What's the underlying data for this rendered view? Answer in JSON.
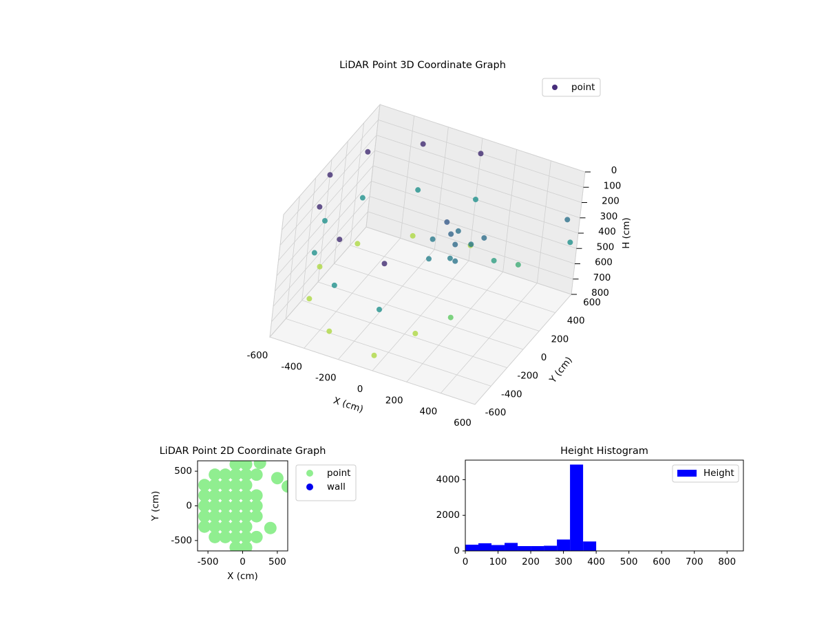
{
  "chart_data": [
    {
      "type": "scatter3d",
      "title": "LiDAR Point 3D Coordinate Graph",
      "xlabel": "X (cm)",
      "ylabel": "Y (cm)",
      "zlabel": "H (cm)",
      "xlim": [
        -600,
        600
      ],
      "ylim": [
        -600,
        600
      ],
      "hlim": [
        0,
        800
      ],
      "h_inverted": true,
      "xticks": [
        -600,
        -400,
        -200,
        0,
        200,
        400,
        600
      ],
      "yticks": [
        -600,
        -400,
        -200,
        0,
        200,
        400,
        600
      ],
      "hticks": [
        0,
        100,
        200,
        300,
        400,
        500,
        600,
        700,
        800
      ],
      "colormap": "viridis",
      "legend": "upper right",
      "series": [
        {
          "name": "point",
          "color": "#472d7b",
          "x": [
            0,
            -300,
            -520,
            -600,
            -520,
            -300,
            0,
            0,
            -300,
            -520,
            -600,
            -520,
            -300,
            0,
            0,
            -300,
            -520,
            -600,
            -520,
            -300,
            0,
            50,
            100,
            150,
            100,
            200,
            0,
            150,
            250,
            50,
            200,
            300,
            400,
            250,
            100,
            550,
            600
          ],
          "y": [
            600,
            520,
            300,
            0,
            -300,
            -520,
            -600,
            600,
            520,
            300,
            0,
            -300,
            -520,
            -600,
            600,
            520,
            300,
            0,
            -300,
            -520,
            -600,
            100,
            50,
            0,
            150,
            100,
            50,
            -50,
            150,
            -100,
            -100,
            200,
            300,
            -200,
            -300,
            550,
            500
          ],
          "h": [
            100,
            100,
            100,
            100,
            100,
            100,
            100,
            400,
            400,
            400,
            400,
            400,
            400,
            400,
            700,
            700,
            700,
            700,
            700,
            700,
            700,
            230,
            260,
            280,
            300,
            320,
            330,
            340,
            290,
            350,
            310,
            450,
            500,
            600,
            700,
            300,
            400
          ]
        }
      ]
    },
    {
      "type": "scatter",
      "title": "LiDAR Point 2D Coordinate Graph",
      "xlabel": "X (cm)",
      "ylabel": "Y (cm)",
      "xlim": [
        -650,
        650
      ],
      "ylim": [
        -650,
        650
      ],
      "xticks": [
        -500,
        0,
        500
      ],
      "yticks": [
        -500,
        0,
        500
      ],
      "legend": "outside right",
      "series": [
        {
          "name": "point",
          "color": "#90ee90",
          "x": [
            -550,
            -550,
            -550,
            -550,
            -550,
            -400,
            -400,
            -400,
            -400,
            -400,
            -400,
            -400,
            -250,
            -250,
            -250,
            -250,
            -250,
            -250,
            -250,
            -100,
            -100,
            -100,
            -100,
            -100,
            -100,
            -100,
            -100,
            -100,
            50,
            50,
            50,
            50,
            50,
            50,
            50,
            50,
            50,
            200,
            200,
            200,
            200,
            200,
            500,
            650,
            400,
            250
          ],
          "y": [
            -300,
            -150,
            0,
            150,
            300,
            -450,
            -300,
            -150,
            0,
            150,
            300,
            450,
            -450,
            -300,
            -150,
            0,
            150,
            300,
            450,
            -600,
            -450,
            -300,
            -150,
            0,
            150,
            300,
            450,
            600,
            -600,
            -450,
            -300,
            -150,
            0,
            150,
            300,
            450,
            600,
            -450,
            -150,
            0,
            150,
            450,
            400,
            280,
            -320,
            620
          ]
        },
        {
          "name": "wall",
          "color": "#0000ee",
          "x": [],
          "y": []
        }
      ]
    },
    {
      "type": "histogram",
      "title": "Height Histogram",
      "name": "Height",
      "color": "#0000ff",
      "bins": [
        0,
        40,
        80,
        120,
        160,
        200,
        240,
        280,
        320,
        360,
        400,
        440,
        480,
        520,
        560,
        600,
        640,
        680,
        720,
        760,
        800
      ],
      "counts": [
        350,
        430,
        330,
        450,
        270,
        270,
        290,
        640,
        4850,
        530,
        0,
        0,
        0,
        0,
        0,
        0,
        0,
        0,
        0,
        0
      ],
      "xlim": [
        0,
        850
      ],
      "ylim": [
        0,
        5100
      ],
      "xticks": [
        0,
        100,
        200,
        300,
        400,
        500,
        600,
        700,
        800
      ],
      "yticks": [
        0,
        2000,
        4000
      ],
      "legend": "upper right"
    }
  ]
}
